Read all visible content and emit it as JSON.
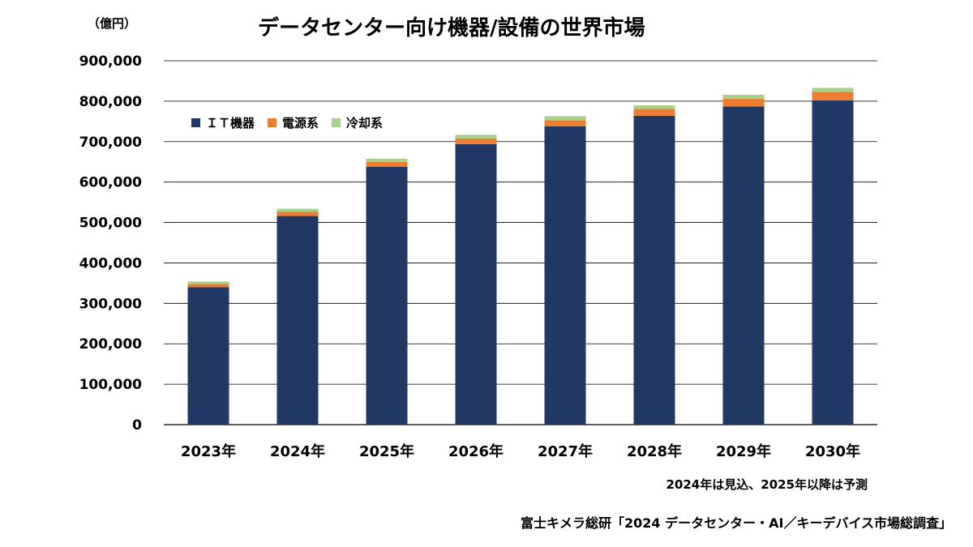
{
  "chart_data": {
    "type": "bar",
    "stacked": true,
    "title": "データセンター向け機器/設備の世界市場",
    "unit_label": "（億円）",
    "categories": [
      "2023年",
      "2024年",
      "2025年",
      "2026年",
      "2027年",
      "2028年",
      "2029年",
      "2030年"
    ],
    "series": [
      {
        "name": "ＩＴ機器",
        "color": "#1f3864",
        "values": [
          340000,
          516000,
          638000,
          694000,
          738000,
          764000,
          787000,
          802000
        ]
      },
      {
        "name": "電源系",
        "color": "#ed7d31",
        "values": [
          8000,
          11000,
          12000,
          14000,
          15000,
          17000,
          19000,
          21000
        ]
      },
      {
        "name": "冷却系",
        "color": "#a9d18e",
        "values": [
          6000,
          7000,
          8000,
          9000,
          10000,
          9000,
          10000,
          10000
        ]
      }
    ],
    "ylim": [
      0,
      900000
    ],
    "yticks": [
      0,
      100000,
      200000,
      300000,
      400000,
      500000,
      600000,
      700000,
      800000,
      900000
    ],
    "ytick_labels": [
      "0",
      "100,000",
      "200,000",
      "300,000",
      "400,000",
      "500,000",
      "600,000",
      "700,000",
      "800,000",
      "900,000"
    ],
    "grid": true,
    "legend_position": "top-left"
  },
  "note": "2024年は見込、2025年以降は予測",
  "source": "富士キメラ総研「2024 データセンター・AI／キーデバイス市場総調査」"
}
